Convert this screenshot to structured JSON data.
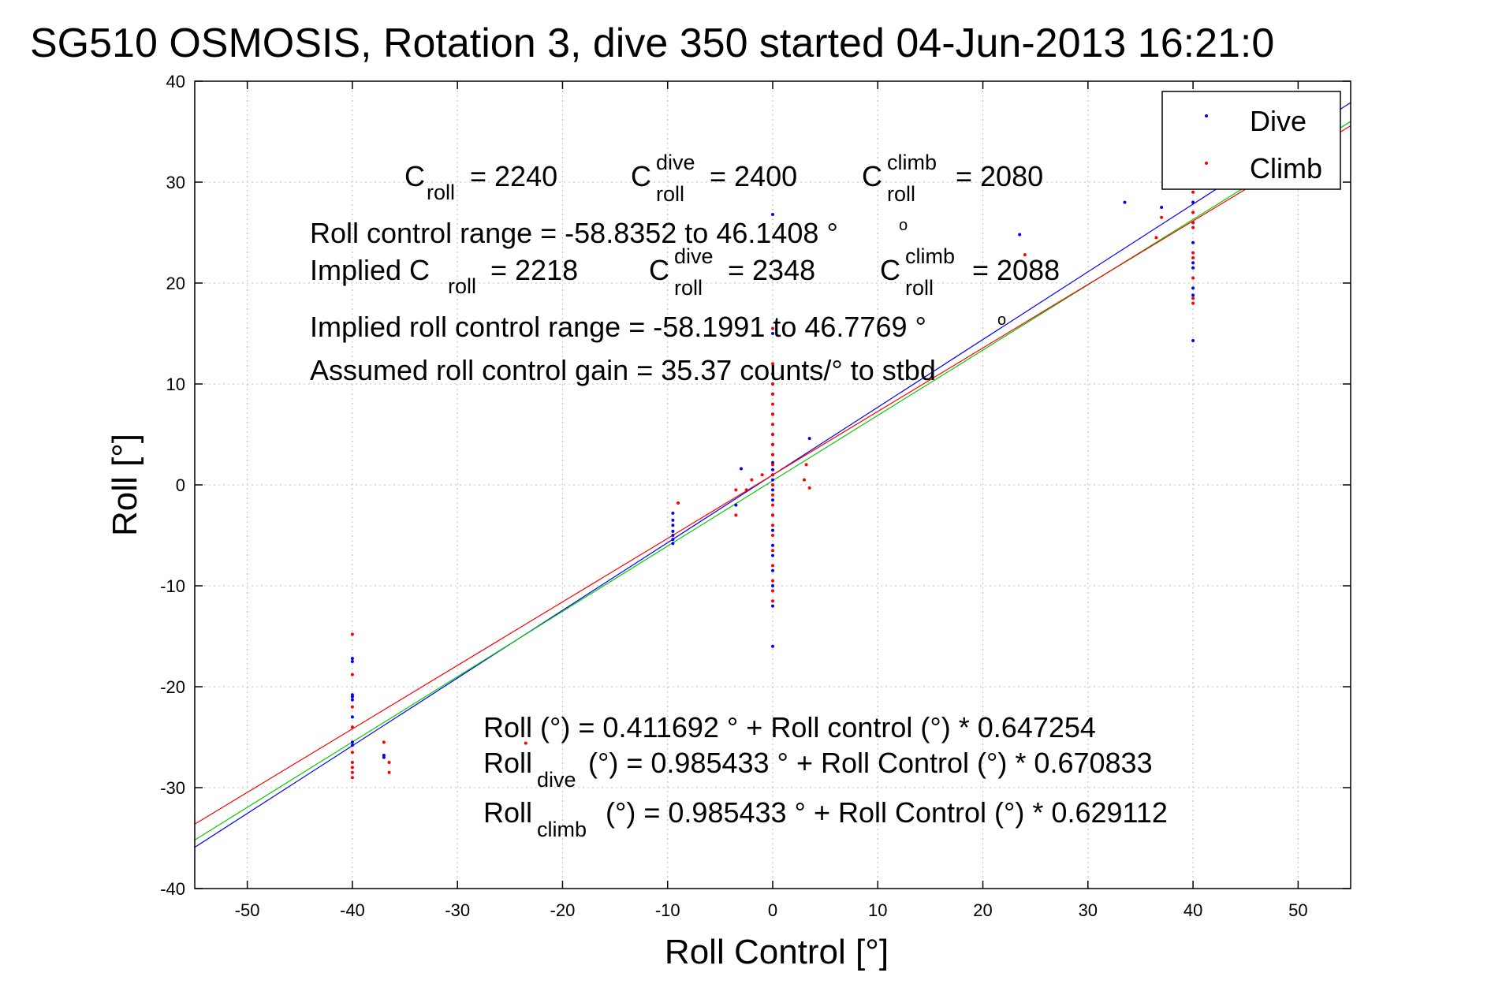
{
  "colors": {
    "dive": "#0000ff",
    "climb": "#ff0000",
    "combined_fit": "#00cc00",
    "background": "#ffffff",
    "grid": "#bfbfbf"
  },
  "chart_data": {
    "type": "scatter",
    "title": "SG510 OSMOSIS, Rotation 3, dive 350 started 04-Jun-2013 16:21:0",
    "xlabel": "Roll Control [°]",
    "ylabel": "Roll [°]",
    "xlim": [
      -55,
      55
    ],
    "ylim": [
      -40,
      40
    ],
    "xticks": [
      -50,
      -40,
      -30,
      -20,
      -10,
      0,
      10,
      20,
      30,
      40,
      50
    ],
    "yticks": [
      -40,
      -30,
      -20,
      -10,
      0,
      10,
      20,
      30,
      40
    ],
    "grid": "dotted",
    "legend": {
      "placement": "top-right",
      "entries": [
        {
          "label": "Dive",
          "color": "#0000ff"
        },
        {
          "label": "Climb",
          "color": "#ff0000"
        }
      ]
    },
    "series": [
      {
        "name": "Dive",
        "color": "#0000ff",
        "points": [
          [
            -40,
            -17.2
          ],
          [
            -40,
            -17.5
          ],
          [
            -40,
            -20.8
          ],
          [
            -40,
            -21.0
          ],
          [
            -40,
            -21.3
          ],
          [
            -40,
            -23.0
          ],
          [
            -40,
            -25.5
          ],
          [
            -40,
            -25.8
          ],
          [
            -37,
            -26.8
          ],
          [
            -37,
            -27.0
          ],
          [
            -9.5,
            -2.8
          ],
          [
            -9.5,
            -3.5
          ],
          [
            -9.5,
            -4.0
          ],
          [
            -9.5,
            -4.6
          ],
          [
            -9.5,
            -5.0
          ],
          [
            -9.5,
            -5.4
          ],
          [
            -9.5,
            -5.8
          ],
          [
            -3.5,
            -2.0
          ],
          [
            -3.0,
            1.6
          ],
          [
            3.5,
            4.6
          ],
          [
            0,
            26.8
          ],
          [
            0,
            15.0
          ],
          [
            0,
            11.0
          ],
          [
            0,
            10.0
          ],
          [
            0,
            9.0
          ],
          [
            0,
            7.0
          ],
          [
            0,
            5.0
          ],
          [
            0,
            4.0
          ],
          [
            0,
            3.0
          ],
          [
            0,
            2.2
          ],
          [
            0,
            1.5
          ],
          [
            0,
            1.0
          ],
          [
            0,
            0.5
          ],
          [
            0,
            0.0
          ],
          [
            0,
            -0.5
          ],
          [
            0,
            -1.5
          ],
          [
            0,
            -3.0
          ],
          [
            0,
            -4.5
          ],
          [
            0,
            -6.0
          ],
          [
            0,
            -7.0
          ],
          [
            0,
            -8.5
          ],
          [
            0,
            -10.0
          ],
          [
            0,
            -12.0
          ],
          [
            0,
            -16.0
          ],
          [
            33.5,
            28.0
          ],
          [
            37,
            27.5
          ],
          [
            23.5,
            24.8
          ],
          [
            40,
            29.5
          ],
          [
            40,
            28.0
          ],
          [
            40,
            26.0
          ],
          [
            40,
            24.0
          ],
          [
            40,
            22.0
          ],
          [
            40,
            21.5
          ],
          [
            40,
            19.5
          ],
          [
            40,
            18.8
          ],
          [
            40,
            14.3
          ]
        ]
      },
      {
        "name": "Climb",
        "color": "#ff0000",
        "points": [
          [
            -40,
            -14.8
          ],
          [
            -40,
            -18.8
          ],
          [
            -40,
            -22.0
          ],
          [
            -40,
            -24.0
          ],
          [
            -40,
            -26.5
          ],
          [
            -40,
            -27.5
          ],
          [
            -40,
            -28.0
          ],
          [
            -40,
            -28.5
          ],
          [
            -40,
            -29.0
          ],
          [
            -37,
            -25.5
          ],
          [
            -36.5,
            -27.5
          ],
          [
            -36.5,
            -28.5
          ],
          [
            -23.5,
            -25.6
          ],
          [
            -9,
            -1.8
          ],
          [
            -3.5,
            -3.0
          ],
          [
            -3.5,
            -0.5
          ],
          [
            -2.0,
            0.5
          ],
          [
            -2.5,
            -0.5
          ],
          [
            -1.0,
            1.0
          ],
          [
            0,
            15.5
          ],
          [
            0,
            12.0
          ],
          [
            0,
            10.0
          ],
          [
            0,
            9.0
          ],
          [
            0,
            8.0
          ],
          [
            0,
            7.0
          ],
          [
            0,
            6.0
          ],
          [
            0,
            5.0
          ],
          [
            0,
            4.0
          ],
          [
            0,
            3.0
          ],
          [
            0,
            2.0
          ],
          [
            0,
            1.0
          ],
          [
            0,
            0.0
          ],
          [
            0,
            -1.0
          ],
          [
            0,
            -2.0
          ],
          [
            0,
            -3.0
          ],
          [
            0,
            -4.0
          ],
          [
            0,
            -5.0
          ],
          [
            0,
            -6.5
          ],
          [
            0,
            -8.0
          ],
          [
            0,
            -9.5
          ],
          [
            0,
            -10.5
          ],
          [
            0,
            -11.5
          ],
          [
            3.0,
            0.5
          ],
          [
            3.5,
            -0.3
          ],
          [
            3.2,
            2.0
          ],
          [
            24,
            22.8
          ],
          [
            36.5,
            24.5
          ],
          [
            37,
            26.5
          ],
          [
            40,
            30.5
          ],
          [
            40,
            29.0
          ],
          [
            40,
            27.0
          ],
          [
            40,
            26.0
          ],
          [
            40,
            25.5
          ],
          [
            40,
            23.0
          ],
          [
            40,
            22.5
          ],
          [
            40,
            20.5
          ],
          [
            40,
            18.5
          ],
          [
            40,
            18.0
          ]
        ]
      }
    ],
    "fit_lines": [
      {
        "label": "Dive fit",
        "color": "#0000ff",
        "intercept": 0.985433,
        "slope": 0.670833
      },
      {
        "label": "Combined fit",
        "color": "#00cc00",
        "intercept": 0.411692,
        "slope": 0.647254
      },
      {
        "label": "Climb fit",
        "color": "#ff0000",
        "intercept": 0.985433,
        "slope": 0.629112
      }
    ],
    "annotations": {
      "c_roll": {
        "base": "C",
        "sub": "roll",
        "value": "= 2240"
      },
      "c_roll_dive": {
        "base": "C",
        "sub": "roll",
        "sup": "dive",
        "value": "= 2400"
      },
      "c_roll_climb": {
        "base": "C",
        "sub": "roll",
        "sup": "climb",
        "value": "= 2080"
      },
      "roll_control_range": "Roll control range = -58.8352 to 46.1408 °",
      "implied_prefix": "Implied C",
      "implied_sub": "roll",
      "implied_value": "= 2218",
      "implied_dive": {
        "base": "C",
        "sub": "roll",
        "sup": "dive",
        "value": "= 2348"
      },
      "implied_climb": {
        "base": "C",
        "sub": "roll",
        "sup": "climb",
        "value": "= 2088"
      },
      "implied_range": "Implied roll control range = -58.1991 to 46.7769 °",
      "gain": "Assumed roll control gain = 35.37 counts/° to stbd",
      "eq_combined": "Roll (°) = 0.411692 ° + Roll control (°) * 0.647254",
      "eq_dive_base": "Roll",
      "eq_dive_sub": "dive",
      "eq_dive_rest": "(°) = 0.985433 ° + Roll Control (°) * 0.670833",
      "eq_climb_base": "Roll",
      "eq_climb_sub": "climb",
      "eq_climb_rest": "(°) = 0.985433 ° + Roll Control (°) * 0.629112"
    }
  }
}
